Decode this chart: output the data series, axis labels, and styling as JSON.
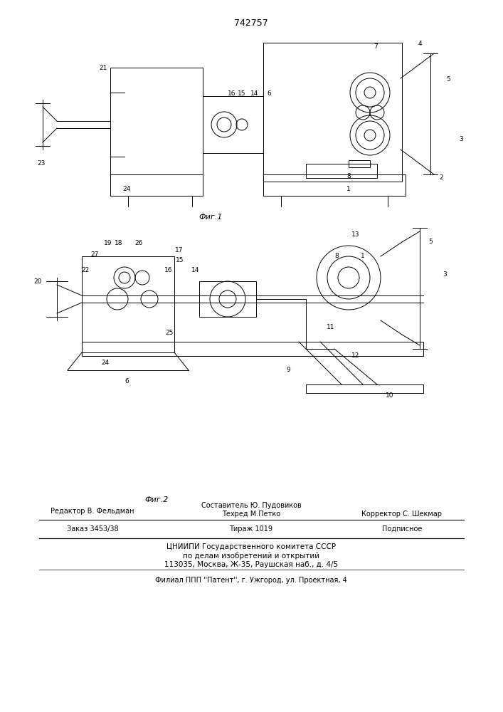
{
  "patent_number": "742757",
  "fig1_caption": "Фиг.1",
  "fig2_caption": "Фиг.2",
  "footer_line1_left": "Редактор В. Фельдман",
  "footer_line1_center_top": "Составитель Ю. Пудовиков",
  "footer_line1_center": "Техред М.Петко",
  "footer_line1_right": "Корректор С. Шекмар",
  "footer_line2_left": "Заказ 3453/38",
  "footer_line2_center": "Тираж 1019",
  "footer_line2_right": "Подписное",
  "footer_line3": "ЦНИИПИ Государственного комитета СССР",
  "footer_line4": "по делам изобретений и открытий",
  "footer_line5": "113035, Москва, Ж-35, Раушская наб., д. 4/5",
  "footer_line6": "Филиал ППП ''Патент'', г. Ужгород, ул. Проектная, 4",
  "bg_color": "#ffffff",
  "line_color": "#000000",
  "drawing_color": "#1a1a1a"
}
